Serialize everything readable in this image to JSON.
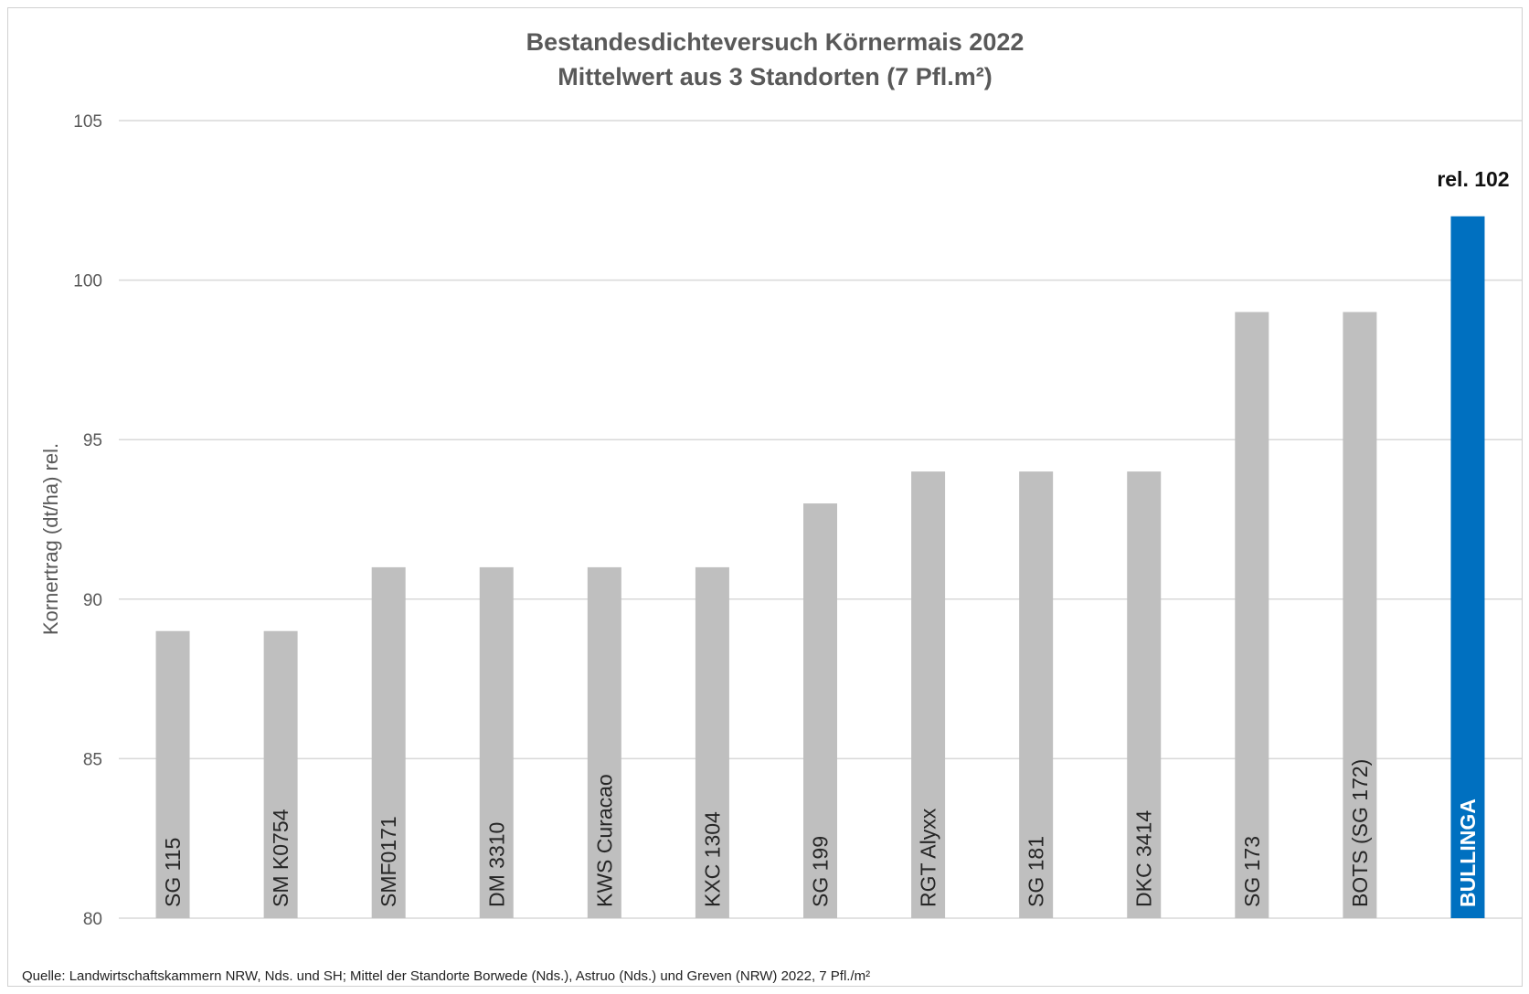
{
  "chart_data": {
    "type": "bar",
    "title": "Bestandesdichteversuch Körnermais 2022",
    "subtitle": "Mittelwert aus 3 Standorten (7 Pfl.m²)",
    "ylabel": "Kornertrag (dt/ha) rel.",
    "xlabel": "",
    "ylim": [
      80,
      105
    ],
    "yticks": [
      80,
      85,
      90,
      95,
      100,
      105
    ],
    "grid": true,
    "legend": "none",
    "categories": [
      "SG 115",
      "SM K0754",
      "SMF0171",
      "DM 3310",
      "KWS Curacao",
      "KXC 1304",
      "SG 199",
      "RGT Alyxx",
      "SG 181",
      "DKC 3414",
      "SG 173",
      "BOTS (SG 172)",
      "BULLINGA"
    ],
    "values": [
      89,
      89,
      91,
      91,
      91,
      91,
      93,
      94,
      94,
      94,
      99,
      99,
      102
    ],
    "highlight_category": "BULLINGA",
    "highlight_annotation": "rel. 102",
    "colors": {
      "default_bar": "#bfbfbf",
      "highlight_bar": "#0070c0",
      "grid": "#d9d9d9",
      "text": "#595959",
      "title": "#595959"
    }
  },
  "footer": {
    "source": "Quelle: Landwirtschaftskammern NRW, Nds. und SH; Mittel der Standorte  Borwede (Nds.), Astruo (Nds.) und Greven (NRW) 2022, 7 Pfl./m²"
  }
}
